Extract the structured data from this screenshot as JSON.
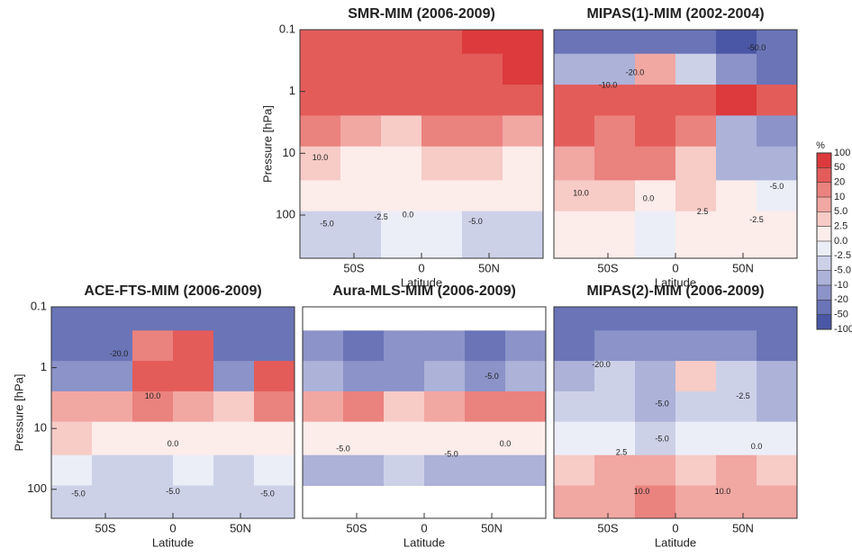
{
  "chart_data": [
    {
      "type": "contour",
      "title": "SMR-MIM (2006-2009)",
      "x_label": "Latitude",
      "y_label": "Pressure [hPa]",
      "xlim": [
        -90,
        90
      ],
      "ylim": [
        0.1,
        500
      ],
      "log_y": true,
      "xticks": [
        {
          "value": -50,
          "label": "50S"
        },
        0,
        {
          "value": 50,
          "label": "50N"
        }
      ],
      "yticks": [
        0.1,
        1,
        10,
        100
      ],
      "x": [
        -75,
        -45,
        -15,
        15,
        45,
        75
      ],
      "y": [
        0.15,
        0.4,
        1.5,
        4,
        15,
        50,
        150
      ],
      "z": [
        [
          40,
          45,
          35,
          45,
          50,
          55
        ],
        [
          40,
          40,
          30,
          35,
          45,
          50
        ],
        [
          30,
          25,
          20,
          25,
          30,
          30
        ],
        [
          12,
          8,
          4,
          10,
          12,
          8
        ],
        [
          3,
          2,
          1,
          3,
          3,
          2
        ],
        [
          1,
          0.5,
          1,
          1,
          1,
          0.5
        ],
        [
          -3,
          -3,
          -2,
          -2,
          -3,
          -3
        ]
      ],
      "annotations": [
        {
          "text": "10.0",
          "x": -75,
          "y": 12
        },
        {
          "text": "-5.0",
          "x": -70,
          "y": 140
        },
        {
          "text": "-2.5",
          "x": -30,
          "y": 110
        },
        {
          "text": "0.0",
          "x": -10,
          "y": 100
        },
        {
          "text": "-5.0",
          "x": 40,
          "y": 130
        }
      ]
    },
    {
      "type": "contour",
      "title": "MIPAS(1)-MIM (2002-2004)",
      "x_label": "Latitude",
      "xlim": [
        -90,
        90
      ],
      "ylim": [
        0.1,
        500
      ],
      "log_y": true,
      "xticks": [
        {
          "value": -50,
          "label": "50S"
        },
        0,
        {
          "value": 50,
          "label": "50N"
        }
      ],
      "x": [
        -75,
        -45,
        -15,
        15,
        45,
        75
      ],
      "y": [
        0.15,
        0.4,
        1.5,
        4,
        15,
        50,
        150
      ],
      "z": [
        [
          -40,
          -30,
          -40,
          -45,
          -55,
          -45
        ],
        [
          -10,
          -8,
          5,
          -5,
          -15,
          -25
        ],
        [
          30,
          20,
          25,
          30,
          50,
          30
        ],
        [
          20,
          15,
          25,
          15,
          -10,
          -15
        ],
        [
          8,
          12,
          10,
          4,
          -8,
          -6
        ],
        [
          3,
          4,
          2,
          3,
          2,
          -1
        ],
        [
          1,
          0.5,
          -1,
          0.5,
          1,
          0.5
        ]
      ],
      "annotations": [
        {
          "text": "-50.0",
          "x": 60,
          "y": 0.2
        },
        {
          "text": "-20.0",
          "x": -30,
          "y": 0.5
        },
        {
          "text": "-10.0",
          "x": -50,
          "y": 0.8
        },
        {
          "text": "10.0",
          "x": -70,
          "y": 45
        },
        {
          "text": "0.0",
          "x": -20,
          "y": 55
        },
        {
          "text": "2.5",
          "x": 20,
          "y": 90
        },
        {
          "text": "-5.0",
          "x": 75,
          "y": 35
        },
        {
          "text": "-2.5",
          "x": 60,
          "y": 120
        }
      ]
    },
    {
      "type": "contour",
      "title": "ACE-FTS-MIM (2006-2009)",
      "x_label": "Latitude",
      "y_label": "Pressure [hPa]",
      "xlim": [
        -90,
        90
      ],
      "ylim": [
        0.1,
        300
      ],
      "log_y": true,
      "xticks": [
        {
          "value": -50,
          "label": "50S"
        },
        0,
        {
          "value": 50,
          "label": "50N"
        }
      ],
      "yticks": [
        0.1,
        1,
        10,
        100
      ],
      "x": [
        -75,
        -45,
        -15,
        15,
        45,
        75
      ],
      "y": [
        0.15,
        0.4,
        1.5,
        4,
        15,
        50,
        150
      ],
      "z": [
        [
          -40,
          -35,
          -30,
          -30,
          -35,
          -40
        ],
        [
          -30,
          -25,
          15,
          20,
          -25,
          -30
        ],
        [
          -15,
          -20,
          40,
          35,
          -20,
          25
        ],
        [
          8,
          5,
          15,
          6,
          3,
          10
        ],
        [
          3,
          2,
          1,
          2,
          1,
          2
        ],
        [
          -1,
          -3,
          -3,
          -2,
          -3,
          -2
        ],
        [
          -4,
          -5,
          -3,
          -4,
          -5,
          -5
        ]
      ],
      "annotations": [
        {
          "text": "10.0",
          "x": -15,
          "y": 3
        },
        {
          "text": "0.0",
          "x": 0,
          "y": 18
        },
        {
          "text": "-20.0",
          "x": -40,
          "y": 0.6
        },
        {
          "text": "-5.0",
          "x": -70,
          "y": 120
        },
        {
          "text": "-5.0",
          "x": 0,
          "y": 110
        },
        {
          "text": "-5.0",
          "x": 70,
          "y": 120
        }
      ]
    },
    {
      "type": "contour",
      "title": "Aura-MLS-MIM (2006-2009)",
      "x_label": "Latitude",
      "xlim": [
        -90,
        90
      ],
      "ylim": [
        0.1,
        300
      ],
      "log_y": true,
      "xticks": [
        {
          "value": -50,
          "label": "50S"
        },
        0,
        {
          "value": 50,
          "label": "50N"
        }
      ],
      "x": [
        -75,
        -45,
        -15,
        15,
        45,
        75
      ],
      "y": [
        0.15,
        0.4,
        1.5,
        4,
        15,
        50,
        150
      ],
      "z": [
        [
          null,
          null,
          null,
          null,
          null,
          null
        ],
        [
          -20,
          -25,
          -15,
          -20,
          -30,
          -20
        ],
        [
          -10,
          -12,
          -15,
          -10,
          -15,
          -10
        ],
        [
          8,
          10,
          3,
          6,
          12,
          10
        ],
        [
          2,
          1,
          0.5,
          1,
          2,
          1
        ],
        [
          -6,
          -7,
          -5,
          -6,
          -7,
          -6
        ],
        [
          null,
          null,
          null,
          null,
          null,
          null
        ]
      ],
      "annotations": [
        {
          "text": "-5.0",
          "x": -60,
          "y": 22
        },
        {
          "text": "-5.0",
          "x": 20,
          "y": 27
        },
        {
          "text": "0.0",
          "x": 60,
          "y": 18
        },
        {
          "text": "-5.0",
          "x": 50,
          "y": 1.4
        }
      ]
    },
    {
      "type": "contour",
      "title": "MIPAS(2)-MIM (2006-2009)",
      "x_label": "Latitude",
      "xlim": [
        -90,
        90
      ],
      "ylim": [
        0.1,
        300
      ],
      "log_y": true,
      "xticks": [
        {
          "value": -50,
          "label": "50S"
        },
        0,
        {
          "value": 50,
          "label": "50N"
        }
      ],
      "x": [
        -75,
        -45,
        -15,
        15,
        45,
        75
      ],
      "y": [
        0.15,
        0.4,
        1.5,
        4,
        15,
        50,
        150
      ],
      "z": [
        [
          -40,
          -45,
          -40,
          -40,
          -45,
          -45
        ],
        [
          -25,
          -20,
          -15,
          -20,
          -20,
          -25
        ],
        [
          -6,
          -4,
          -8,
          3,
          -4,
          -8
        ],
        [
          -5,
          -3,
          -6,
          -4,
          -3,
          -6
        ],
        [
          -2,
          -1,
          -3,
          -2,
          -1,
          -2
        ],
        [
          4,
          5,
          6,
          4,
          5,
          4
        ],
        [
          9,
          8,
          10,
          8,
          9,
          9
        ]
      ],
      "annotations": [
        {
          "text": "-20.0",
          "x": -55,
          "y": 0.9
        },
        {
          "text": "-5.0",
          "x": -10,
          "y": 4
        },
        {
          "text": "-2.5",
          "x": 50,
          "y": 3
        },
        {
          "text": "-5.0",
          "x": -10,
          "y": 15
        },
        {
          "text": "0.0",
          "x": 60,
          "y": 20
        },
        {
          "text": "10.0",
          "x": -25,
          "y": 110
        },
        {
          "text": "10.0",
          "x": 35,
          "y": 110
        },
        {
          "text": "2.5",
          "x": -40,
          "y": 25
        }
      ]
    }
  ],
  "colorbar": {
    "title": "%",
    "ticks": [
      100,
      50,
      20,
      10,
      {
        "value": 5,
        "label": "5.0"
      },
      2.5,
      {
        "value": 0,
        "label": "0.0"
      },
      -2.5,
      {
        "value": -5,
        "label": "-5.0"
      },
      -10,
      -20,
      -50,
      -100
    ],
    "colors": [
      "#dc3a3c",
      "#e35c5a",
      "#ea827e",
      "#f1a7a2",
      "#f7cbc6",
      "#fcecea",
      "#eceef7",
      "#cdd1e8",
      "#acb2d8",
      "#8b93c8",
      "#6a74b7",
      "#4a56a6"
    ]
  }
}
